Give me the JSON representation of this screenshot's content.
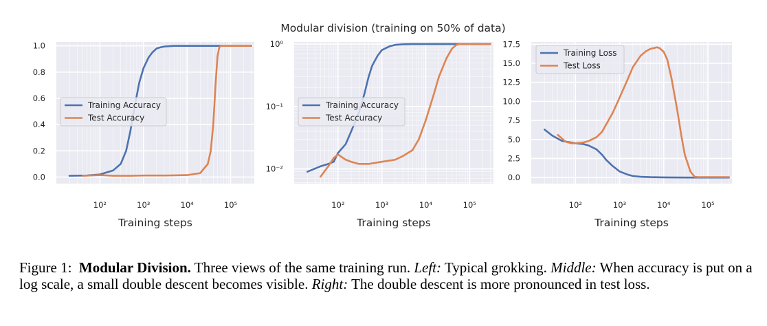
{
  "suptitle": "Modular division (training on 50% of data)",
  "chart_data": [
    {
      "type": "line",
      "xscale": "log",
      "yscale": "linear",
      "xlabel": "Training steps",
      "ylabel": "",
      "xlim": [
        10,
        350000
      ],
      "ylim": [
        -0.05,
        1.03
      ],
      "xticks": [
        100,
        1000,
        10000,
        100000
      ],
      "xticklabels": [
        "10²",
        "10³",
        "10⁴",
        "10⁵"
      ],
      "yticks": [
        0.0,
        0.2,
        0.4,
        0.6,
        0.8,
        1.0
      ],
      "yticklabels": [
        "0.0",
        "0.2",
        "0.4",
        "0.6",
        "0.8",
        "1.0"
      ],
      "grid": true,
      "legend_loc": "center-left",
      "series": [
        {
          "name": "Training Accuracy",
          "color": "#4c72b0",
          "x": [
            20,
            50,
            100,
            200,
            300,
            400,
            500,
            600,
            700,
            800,
            1000,
            1300,
            1600,
            2000,
            2500,
            3000,
            5000,
            10000,
            20000,
            50000,
            100000,
            300000
          ],
          "y": [
            0.01,
            0.012,
            0.02,
            0.05,
            0.1,
            0.2,
            0.35,
            0.5,
            0.62,
            0.72,
            0.83,
            0.91,
            0.95,
            0.98,
            0.99,
            0.995,
            1.0,
            1.0,
            1.0,
            1.0,
            1.0,
            1.0
          ]
        },
        {
          "name": "Test Accuracy",
          "color": "#dd8452",
          "x": [
            40,
            100,
            200,
            500,
            1000,
            3000,
            10000,
            20000,
            30000,
            35000,
            40000,
            45000,
            50000,
            55000,
            60000,
            100000,
            300000
          ],
          "y": [
            0.01,
            0.015,
            0.01,
            0.01,
            0.012,
            0.012,
            0.015,
            0.03,
            0.1,
            0.2,
            0.4,
            0.7,
            0.92,
            0.99,
            1.0,
            1.0,
            1.0
          ]
        }
      ]
    },
    {
      "type": "line",
      "xscale": "log",
      "yscale": "log",
      "xlabel": "Training steps",
      "ylabel": "",
      "xlim": [
        10,
        350000
      ],
      "ylim": [
        0.0058,
        1.08
      ],
      "xticks": [
        100,
        1000,
        10000,
        100000
      ],
      "xticklabels": [
        "10²",
        "10³",
        "10⁴",
        "10⁵"
      ],
      "yticks": [
        0.01,
        0.1,
        1
      ],
      "yticklabels": [
        "10⁻²",
        "10⁻¹",
        "10⁰"
      ],
      "grid": true,
      "legend_loc": "center-left",
      "series": [
        {
          "name": "Training Accuracy",
          "color": "#4c72b0",
          "x": [
            20,
            40,
            60,
            80,
            100,
            150,
            200,
            300,
            400,
            500,
            600,
            800,
            1000,
            1500,
            2000,
            3000,
            5000,
            10000,
            30000,
            100000,
            300000
          ],
          "y": [
            0.009,
            0.011,
            0.012,
            0.013,
            0.018,
            0.025,
            0.04,
            0.08,
            0.16,
            0.3,
            0.45,
            0.65,
            0.8,
            0.92,
            0.97,
            0.99,
            1.0,
            1.0,
            1.0,
            1.0,
            1.0
          ]
        },
        {
          "name": "Test Accuracy",
          "color": "#dd8452",
          "x": [
            40,
            60,
            80,
            100,
            150,
            200,
            300,
            500,
            1000,
            2000,
            3000,
            5000,
            7000,
            10000,
            15000,
            20000,
            30000,
            40000,
            50000,
            60000,
            100000,
            300000
          ],
          "y": [
            0.0075,
            0.011,
            0.015,
            0.017,
            0.014,
            0.013,
            0.012,
            0.012,
            0.013,
            0.014,
            0.016,
            0.02,
            0.03,
            0.06,
            0.15,
            0.3,
            0.6,
            0.85,
            0.97,
            1.0,
            1.0,
            1.0
          ]
        }
      ]
    },
    {
      "type": "line",
      "xscale": "log",
      "yscale": "linear",
      "xlabel": "Training steps",
      "ylabel": "",
      "xlim": [
        10,
        350000
      ],
      "ylim": [
        -0.8,
        17.8
      ],
      "xticks": [
        100,
        1000,
        10000,
        100000
      ],
      "xticklabels": [
        "10²",
        "10³",
        "10⁴",
        "10⁵"
      ],
      "yticks": [
        0.0,
        2.5,
        5.0,
        7.5,
        10.0,
        12.5,
        15.0,
        17.5
      ],
      "yticklabels": [
        "0.0",
        "2.5",
        "5.0",
        "7.5",
        "10.0",
        "12.5",
        "15.0",
        "17.5"
      ],
      "grid": true,
      "legend_loc": "top-left",
      "series": [
        {
          "name": "Training Loss",
          "color": "#4c72b0",
          "x": [
            20,
            30,
            50,
            80,
            100,
            150,
            200,
            300,
            400,
            500,
            700,
            1000,
            1500,
            2000,
            3000,
            5000,
            10000,
            20000,
            50000,
            100000,
            300000
          ],
          "y": [
            6.3,
            5.5,
            4.8,
            4.6,
            4.5,
            4.4,
            4.2,
            3.7,
            3.0,
            2.3,
            1.5,
            0.8,
            0.4,
            0.2,
            0.1,
            0.05,
            0.02,
            0.01,
            0.0,
            0.0,
            0.0
          ]
        },
        {
          "name": "Test Loss",
          "color": "#dd8452",
          "x": [
            40,
            60,
            80,
            100,
            150,
            200,
            300,
            400,
            500,
            700,
            1000,
            1500,
            2000,
            3000,
            4000,
            5000,
            6000,
            7000,
            8000,
            10000,
            12000,
            15000,
            20000,
            25000,
            30000,
            40000,
            50000,
            60000,
            100000,
            300000
          ],
          "y": [
            5.6,
            4.7,
            4.5,
            4.5,
            4.6,
            4.8,
            5.3,
            6.0,
            7.0,
            8.5,
            10.5,
            12.8,
            14.5,
            16.0,
            16.6,
            16.9,
            17.0,
            17.1,
            17.0,
            16.5,
            15.5,
            13.0,
            9.0,
            5.5,
            3.0,
            0.8,
            0.1,
            0.05,
            0.05,
            0.05
          ]
        }
      ]
    }
  ],
  "caption": {
    "label": "Figure 1:",
    "bold": "Modular Division.",
    "text1": " Three views of the same training run. ",
    "left_label": "Left:",
    "text2": " Typical grokking. ",
    "middle_label": "Middle:",
    "text3": " When accuracy is put on a log scale, a small double descent becomes visible. ",
    "right_label": "Right:",
    "text4": " The double descent is more pronounced in test loss."
  }
}
